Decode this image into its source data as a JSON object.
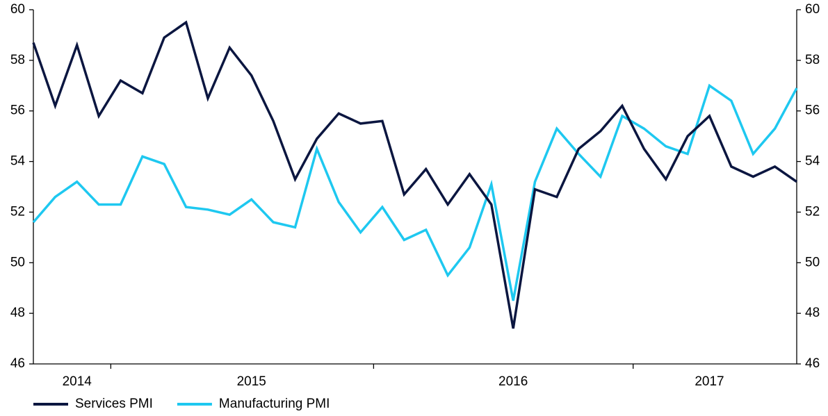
{
  "chart_data": {
    "type": "line",
    "categories": [
      null,
      null,
      "2014",
      null,
      null,
      null,
      null,
      null,
      null,
      null,
      "2015",
      null,
      null,
      null,
      null,
      null,
      null,
      null,
      null,
      null,
      null,
      null,
      "2016",
      null,
      null,
      null,
      null,
      null,
      null,
      null,
      null,
      "2017",
      null,
      null,
      null,
      null
    ],
    "series": [
      {
        "name": "Services PMI",
        "color": "#0b1640",
        "values": [
          58.7,
          56.2,
          58.6,
          55.8,
          57.2,
          56.7,
          58.9,
          59.5,
          56.5,
          58.5,
          57.4,
          55.6,
          53.3,
          54.9,
          55.9,
          55.5,
          55.6,
          52.7,
          53.7,
          52.3,
          53.5,
          52.3,
          47.4,
          52.9,
          52.6,
          54.5,
          55.2,
          56.2,
          54.5,
          53.3,
          55.0,
          55.8,
          53.8,
          53.4,
          53.8,
          53.2
        ]
      },
      {
        "name": "Manufacturing PMI",
        "color": "#1ec8f0",
        "values": [
          51.6,
          52.6,
          53.2,
          52.3,
          52.3,
          54.2,
          53.9,
          52.2,
          52.1,
          51.9,
          52.5,
          51.6,
          51.4,
          54.5,
          52.4,
          51.2,
          52.2,
          50.9,
          51.3,
          49.5,
          50.6,
          53.1,
          48.5,
          53.2,
          55.3,
          54.3,
          53.4,
          55.8,
          55.3,
          54.6,
          54.3,
          57.0,
          56.4,
          54.3,
          55.3,
          56.9
        ]
      }
    ],
    "ylim": [
      46,
      60
    ],
    "yticks": [
      46,
      48,
      50,
      52,
      54,
      56,
      58,
      60
    ],
    "y2lim": [
      46,
      60
    ],
    "y2ticks": [
      46,
      48,
      50,
      52,
      54,
      56,
      58,
      60
    ],
    "legend": "bottom-left"
  }
}
